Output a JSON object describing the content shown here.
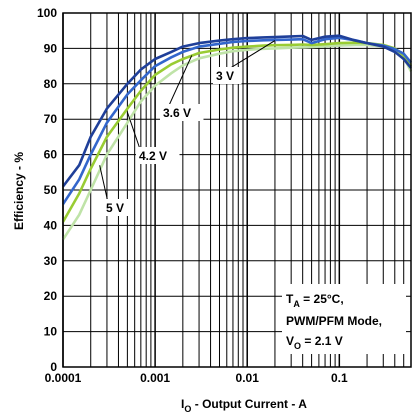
{
  "chart_data": {
    "type": "line",
    "xlabel_main": "I",
    "xlabel_sub": "O",
    "xlabel_rest": " - Output Current - A",
    "ylabel": "Efficiency - %",
    "x_scale": "log",
    "xlim": [
      0.0001,
      0.6
    ],
    "ylim": [
      0,
      100
    ],
    "x_ticks": [
      {
        "value": 0.0001,
        "label": "0.0001"
      },
      {
        "value": 0.001,
        "label": "0.001"
      },
      {
        "value": 0.01,
        "label": "0.01"
      },
      {
        "value": 0.1,
        "label": "0.1"
      }
    ],
    "y_ticks": [
      0,
      10,
      20,
      30,
      40,
      50,
      60,
      70,
      80,
      90,
      100
    ],
    "grid": true,
    "series": [
      {
        "name": "3 V",
        "color": "#1f3f99",
        "x": [
          0.0001,
          0.00015,
          0.0002,
          0.0003,
          0.0005,
          0.0007,
          0.001,
          0.0015,
          0.002,
          0.003,
          0.005,
          0.007,
          0.01,
          0.015,
          0.02,
          0.03,
          0.04,
          0.05,
          0.07,
          0.1,
          0.15,
          0.2,
          0.3,
          0.4,
          0.5,
          0.6
        ],
        "y": [
          51,
          57,
          65,
          73,
          80,
          84,
          87,
          89,
          90.5,
          91.5,
          92.2,
          92.6,
          92.9,
          93.1,
          93.2,
          93.4,
          93.5,
          92.4,
          93.3,
          93.6,
          92.2,
          91.5,
          90.5,
          89,
          87,
          84.5
        ]
      },
      {
        "name": "3.6 V",
        "color": "#3366cc",
        "x": [
          0.0001,
          0.00015,
          0.0002,
          0.0003,
          0.0005,
          0.0007,
          0.001,
          0.0015,
          0.002,
          0.003,
          0.005,
          0.007,
          0.01,
          0.015,
          0.02,
          0.03,
          0.04,
          0.05,
          0.07,
          0.1,
          0.15,
          0.2,
          0.3,
          0.4,
          0.5,
          0.6
        ],
        "y": [
          46,
          53,
          60,
          69,
          77,
          81,
          85,
          87.5,
          89,
          90.5,
          91.3,
          91.8,
          92.1,
          92.3,
          92.4,
          92.5,
          92.6,
          91.5,
          92.6,
          93,
          92.3,
          91.5,
          90.8,
          89.8,
          88.5,
          86
        ]
      },
      {
        "name": "4.2 V",
        "color": "#99cc33",
        "x": [
          0.0001,
          0.00015,
          0.0002,
          0.0003,
          0.0005,
          0.0007,
          0.001,
          0.0015,
          0.002,
          0.003,
          0.005,
          0.007,
          0.01,
          0.015,
          0.02,
          0.03,
          0.04,
          0.05,
          0.07,
          0.1,
          0.15,
          0.2,
          0.3,
          0.4,
          0.5,
          0.6
        ],
        "y": [
          41,
          49,
          56,
          65,
          73,
          78,
          82.5,
          85.5,
          87,
          88.7,
          89.7,
          90.2,
          90.5,
          90.8,
          90.9,
          91,
          91.1,
          91,
          91.2,
          91.5,
          91.6,
          91.5,
          91,
          90,
          88,
          85
        ]
      },
      {
        "name": "5 V",
        "color": "#bfe3a8",
        "x": [
          0.0001,
          0.00015,
          0.0002,
          0.0003,
          0.0005,
          0.0007,
          0.001,
          0.0015,
          0.002,
          0.003,
          0.005,
          0.007,
          0.01,
          0.015,
          0.02,
          0.03,
          0.04,
          0.05,
          0.07,
          0.1,
          0.15,
          0.2,
          0.3,
          0.4,
          0.5,
          0.6
        ],
        "y": [
          36,
          43,
          50,
          60,
          69,
          75,
          79.5,
          83,
          85.2,
          87.2,
          88.5,
          89.2,
          89.6,
          89.9,
          90,
          90.2,
          90.3,
          90.4,
          90.6,
          90.8,
          91,
          91,
          90.5,
          89.5,
          87.5,
          83.5
        ]
      }
    ],
    "curve_labels": [
      {
        "text": "3 V",
        "series": 0
      },
      {
        "text": "3.6 V",
        "series": 1
      },
      {
        "text": "4.2 V",
        "series": 2
      },
      {
        "text": "5 V",
        "series": 3
      }
    ],
    "annotation": {
      "line1_main": "T",
      "line1_sub": "A",
      "line1_rest": " = 25°C,",
      "line2": "PWM/PFM Mode,",
      "line3_main": "V",
      "line3_sub": "O",
      "line3_rest": " = 2.1 V"
    }
  }
}
